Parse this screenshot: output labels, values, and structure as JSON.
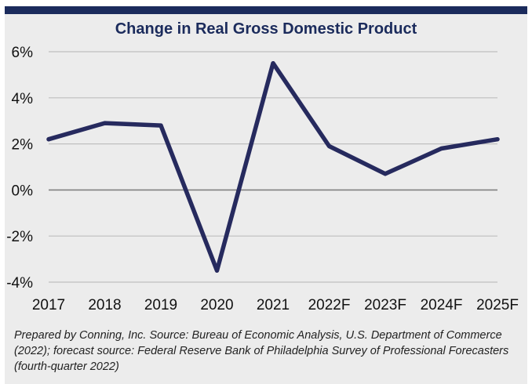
{
  "chart_data": {
    "type": "line",
    "title": "Change in Real Gross Domestic Product",
    "categories": [
      "2017",
      "2018",
      "2019",
      "2020",
      "2021",
      "2022F",
      "2023F",
      "2024F",
      "2025F"
    ],
    "series": [
      {
        "values": [
          2.2,
          2.9,
          2.8,
          -3.5,
          5.5,
          1.9,
          0.7,
          1.8,
          2.2
        ]
      }
    ],
    "y_ticks": [
      "6%",
      "4%",
      "2%",
      "0%",
      "-2%",
      "-4%"
    ],
    "y_tick_values": [
      6,
      4,
      2,
      0,
      -2,
      -4
    ],
    "ylim": [
      -4,
      6
    ],
    "xlabel": "",
    "ylabel": "",
    "grid": true,
    "colors": {
      "line": "#262a5e",
      "gridline": "#bfbfbf",
      "zero_line": "#808080",
      "title": "#1b2b5c",
      "header_bar": "#1b2b5c",
      "panel": "#ececec"
    }
  },
  "footnote": "Prepared by Conning, Inc. Source: Bureau of Economic Analysis, U.S. Department of Commerce (2022); forecast source: Federal Reserve Bank of Philadelphia Survey of Professional Forecasters (fourth-quarter 2022)"
}
